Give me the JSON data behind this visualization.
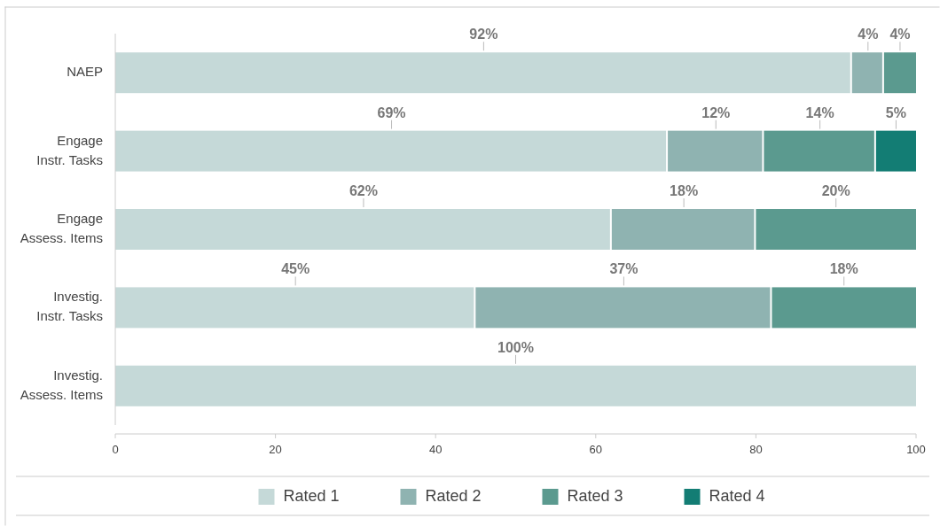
{
  "chart_data": {
    "type": "bar",
    "orientation": "horizontal",
    "stacked": true,
    "categories": [
      "NAEP",
      "Engage\nInstr. Tasks",
      "Engage\nAssess. Items",
      "Investig.\nInstr. Tasks",
      "Investig.\nAssess. Items"
    ],
    "series": [
      {
        "name": "Rated 1",
        "color": "#c5d9d8",
        "values": [
          92,
          69,
          62,
          45,
          100
        ],
        "value_labels": [
          "92%",
          "69%",
          "62%",
          "45%",
          "100%"
        ]
      },
      {
        "name": "Rated 2",
        "color": "#8fb3b1",
        "values": [
          4,
          12,
          18,
          37,
          null
        ],
        "value_labels": [
          "4%",
          "12%",
          "18%",
          "37%",
          null
        ]
      },
      {
        "name": "Rated 3",
        "color": "#5b9a8f",
        "values": [
          4,
          14,
          20,
          18,
          null
        ],
        "value_labels": [
          "4%",
          "14%",
          "20%",
          "18%",
          null
        ]
      },
      {
        "name": "Rated 4",
        "color": "#137d74",
        "values": [
          null,
          5,
          null,
          null,
          null
        ],
        "value_labels": [
          null,
          "5%",
          null,
          null,
          null
        ]
      }
    ],
    "xlim": [
      0,
      100
    ],
    "xticks": [
      0,
      20,
      40,
      60,
      80,
      100
    ],
    "legend": "bottom",
    "grid": false
  }
}
